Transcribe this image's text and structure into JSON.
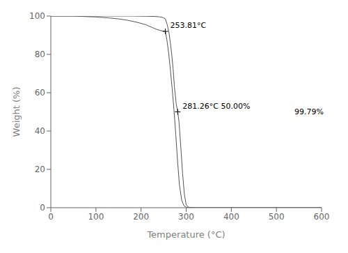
{
  "chart_data": {
    "type": "line",
    "title": "",
    "xlabel": "Temperature (°C)",
    "ylabel": "Weight (%)",
    "xlim": [
      0,
      600
    ],
    "ylim": [
      0,
      100
    ],
    "xticks": [
      0,
      100,
      200,
      300,
      400,
      500,
      600
    ],
    "yticks": [
      0,
      20,
      40,
      60,
      80,
      100
    ],
    "grid": false,
    "series": [
      {
        "color": "#555555",
        "x": [
          0,
          50,
          100,
          130,
          150,
          170,
          190,
          210,
          225,
          235,
          242,
          248,
          252,
          253.81,
          257,
          261,
          265,
          269,
          273,
          277,
          281,
          285,
          290,
          295,
          300,
          305,
          310,
          318,
          600
        ],
        "values": [
          100,
          100,
          99.5,
          99.0,
          98.5,
          97.8,
          96.8,
          95.5,
          94.0,
          93.0,
          92.5,
          92.2,
          92.0,
          92.0,
          88.0,
          81.0,
          72.0,
          62.0,
          51.0,
          38.0,
          24.0,
          12.0,
          4.0,
          1.0,
          0.3,
          0.1,
          0.05,
          0.0,
          0.0
        ]
      },
      {
        "color": "#555555",
        "x": [
          0,
          100,
          180,
          210,
          230,
          240,
          248,
          253.81,
          258,
          262,
          265,
          268,
          271,
          274,
          278,
          281.26,
          284,
          288,
          292,
          296,
          300,
          305,
          310,
          318,
          600
        ],
        "values": [
          100,
          100,
          100,
          99.9,
          99.8,
          99.6,
          99.3,
          98.5,
          95.5,
          91.0,
          86.0,
          80.0,
          72.5,
          63.0,
          54.0,
          50.0,
          45.0,
          32.0,
          18.0,
          7.0,
          1.5,
          0.3,
          0.1,
          0.0,
          0.0
        ]
      }
    ],
    "annotations": [
      {
        "x": 253.81,
        "y": 92.0,
        "text": "253.81°C",
        "marker": "+"
      },
      {
        "x": 281.26,
        "y": 50.0,
        "text": "281.26°C 50.00%",
        "marker": "+"
      },
      {
        "x": 540,
        "y": 50.0,
        "text": "99.79%"
      }
    ]
  }
}
